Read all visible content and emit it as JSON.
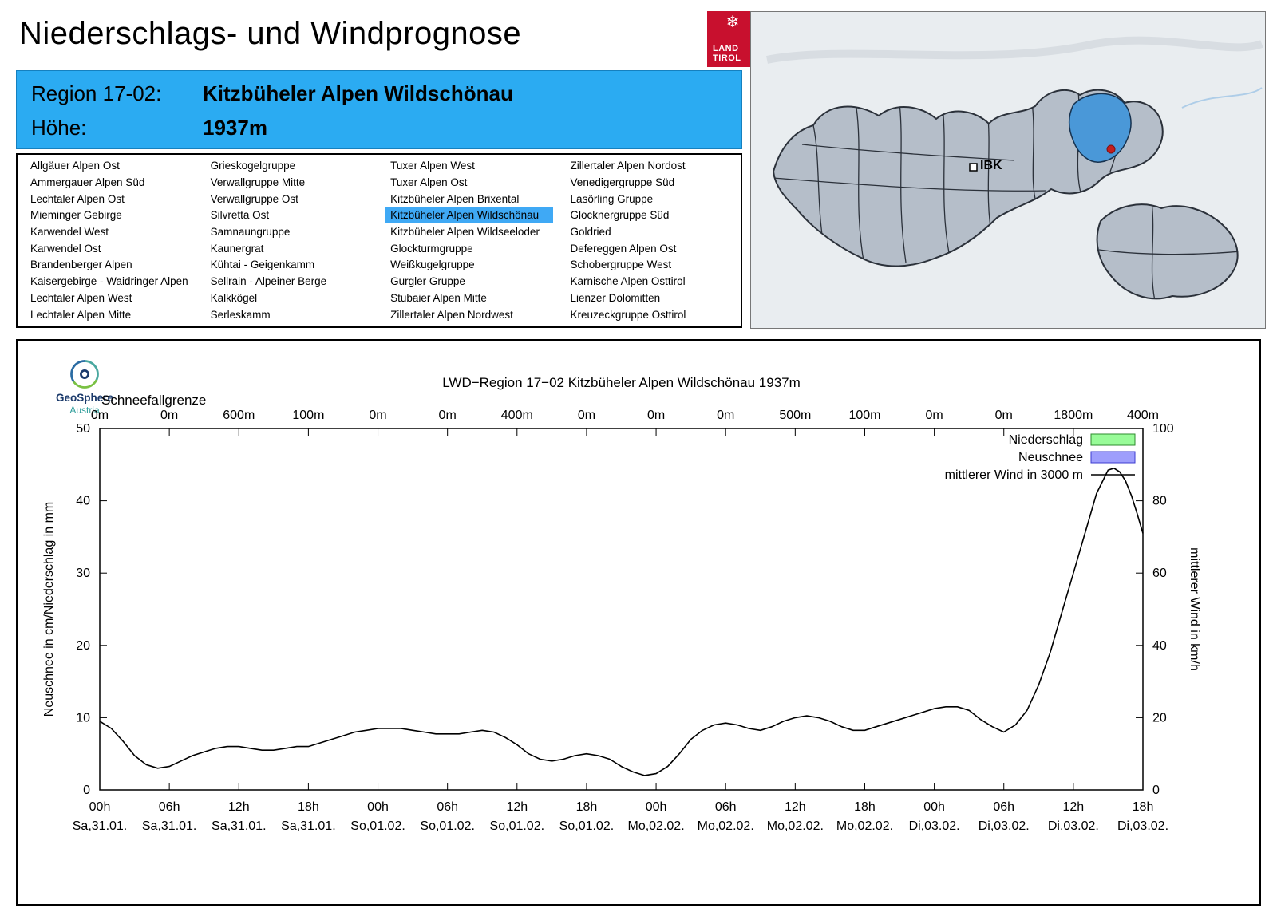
{
  "page": {
    "title": "Niederschlags- und Windprognose"
  },
  "logo": {
    "line1": "LAND",
    "line2": "TIROL",
    "name": "Land Tirol"
  },
  "geosphere": {
    "name": "GeoSphere",
    "country": "Austria"
  },
  "map": {
    "ibk_label": "IBK"
  },
  "region_info": {
    "region_label": "Region 17-02:",
    "region_value": "Kitzbüheler Alpen Wildschönau",
    "hoehe_label": "Höhe:",
    "hoehe_value": "1937m"
  },
  "region_list": {
    "selected": "Kitzbüheler Alpen Wildschönau",
    "columns": [
      [
        "Allgäuer Alpen Ost",
        "Ammergauer Alpen Süd",
        "Lechtaler Alpen Ost",
        "Mieminger Gebirge",
        "Karwendel West",
        "Karwendel Ost",
        "Brandenberger Alpen",
        "Kaisergebirge - Waidringer Alpen",
        "Lechtaler Alpen West",
        "Lechtaler Alpen Mitte"
      ],
      [
        "Grieskogelgruppe",
        "Verwallgruppe Mitte",
        "Verwallgruppe Ost",
        "Silvretta Ost",
        "Samnaungruppe",
        "Kaunergrat",
        "Kühtai - Geigenkamm",
        "Sellrain - Alpeiner Berge",
        "Kalkkögel",
        "Serleskamm"
      ],
      [
        "Tuxer Alpen West",
        "Tuxer Alpen Ost",
        "Kitzbüheler Alpen Brixental",
        "Kitzbüheler Alpen Wildschönau",
        "Kitzbüheler Alpen Wildseeloder",
        "Glockturmgruppe",
        "Weißkugelgruppe",
        "Gurgler Gruppe",
        "Stubaier Alpen Mitte",
        "Zillertaler Alpen Nordwest"
      ],
      [
        "Zillertaler Alpen Nordost",
        "Venedigergruppe Süd",
        "Lasörling Gruppe",
        "Glocknergruppe Süd",
        "Goldried",
        "Defereggen Alpen Ost",
        "Schobergruppe West",
        "Karnische Alpen Osttirol",
        "Lienzer Dolomitten",
        "Kreuzeckgruppe Osttirol"
      ]
    ]
  },
  "chart_data": {
    "type": "line",
    "title": "LWD−Region 17−02 Kitzbüheler Alpen Wildschönau 1937m",
    "snowline_label": "Schneefallgrenze",
    "snowline_values": [
      "0m",
      "0m",
      "600m",
      "100m",
      "0m",
      "0m",
      "400m",
      "0m",
      "0m",
      "0m",
      "500m",
      "100m",
      "0m",
      "0m",
      "1800m",
      "400m"
    ],
    "x_ticks_hours": [
      "00h",
      "06h",
      "12h",
      "18h",
      "00h",
      "06h",
      "12h",
      "18h",
      "00h",
      "06h",
      "12h",
      "18h",
      "00h",
      "06h",
      "12h",
      "18h"
    ],
    "x_ticks_dates": [
      "Sa,31.01.",
      "Sa,31.01.",
      "Sa,31.01.",
      "Sa,31.01.",
      "So,01.02.",
      "So,01.02.",
      "So,01.02.",
      "So,01.02.",
      "Mo,02.02.",
      "Mo,02.02.",
      "Mo,02.02.",
      "Mo,02.02.",
      "Di,03.02.",
      "Di,03.02.",
      "Di,03.02.",
      "Di,03.02."
    ],
    "x_range_hours": [
      0,
      90
    ],
    "ylabel_left": "Neuschnee in cm/Niederschlag in mm",
    "ylabel_right": "mittlerer Wind in km/h",
    "ylim_left": [
      0,
      50
    ],
    "ylim_right": [
      0,
      100
    ],
    "y_ticks_left": [
      0,
      10,
      20,
      30,
      40,
      50
    ],
    "y_ticks_right": [
      0,
      20,
      40,
      60,
      80,
      100
    ],
    "grid": false,
    "legend_position": "top-right-inside",
    "legend": [
      {
        "label": "Niederschlag",
        "type": "box",
        "fill": "#98fb98",
        "stroke": "#2e8b2e"
      },
      {
        "label": "Neuschnee",
        "type": "box",
        "fill": "#9e9efc",
        "stroke": "#3c3cd0"
      },
      {
        "label": "mittlerer Wind in 3000 m",
        "type": "line",
        "stroke": "#000000"
      }
    ],
    "series": [
      {
        "name": "mittlerer Wind in 3000 m",
        "axis": "right",
        "unit": "km/h",
        "points": [
          [
            0,
            19
          ],
          [
            1,
            17
          ],
          [
            2,
            13.5
          ],
          [
            3,
            9.5
          ],
          [
            4,
            7
          ],
          [
            5,
            6
          ],
          [
            6,
            6.5
          ],
          [
            7,
            8
          ],
          [
            8,
            9.5
          ],
          [
            9,
            10.5
          ],
          [
            10,
            11.5
          ],
          [
            11,
            12
          ],
          [
            12,
            12
          ],
          [
            13,
            11.5
          ],
          [
            14,
            11
          ],
          [
            15,
            11
          ],
          [
            16,
            11.5
          ],
          [
            17,
            12
          ],
          [
            18,
            12
          ],
          [
            19,
            13
          ],
          [
            20,
            14
          ],
          [
            21,
            15
          ],
          [
            22,
            16
          ],
          [
            23,
            16.5
          ],
          [
            24,
            17
          ],
          [
            25,
            17
          ],
          [
            26,
            17
          ],
          [
            27,
            16.5
          ],
          [
            28,
            16
          ],
          [
            29,
            15.5
          ],
          [
            30,
            15.5
          ],
          [
            31,
            15.5
          ],
          [
            32,
            16
          ],
          [
            33,
            16.5
          ],
          [
            34,
            16
          ],
          [
            35,
            14.5
          ],
          [
            36,
            12.5
          ],
          [
            37,
            10
          ],
          [
            38,
            8.5
          ],
          [
            39,
            8
          ],
          [
            40,
            8.5
          ],
          [
            41,
            9.5
          ],
          [
            42,
            10
          ],
          [
            43,
            9.5
          ],
          [
            44,
            8.5
          ],
          [
            45,
            6.5
          ],
          [
            46,
            5
          ],
          [
            47,
            4
          ],
          [
            48,
            4.5
          ],
          [
            49,
            6.5
          ],
          [
            50,
            10
          ],
          [
            51,
            14
          ],
          [
            52,
            16.5
          ],
          [
            53,
            18
          ],
          [
            54,
            18.5
          ],
          [
            55,
            18
          ],
          [
            56,
            17
          ],
          [
            57,
            16.5
          ],
          [
            58,
            17.5
          ],
          [
            59,
            19
          ],
          [
            60,
            20
          ],
          [
            61,
            20.5
          ],
          [
            62,
            20
          ],
          [
            63,
            19
          ],
          [
            64,
            17.5
          ],
          [
            65,
            16.5
          ],
          [
            66,
            16.5
          ],
          [
            67,
            17.5
          ],
          [
            68,
            18.5
          ],
          [
            69,
            19.5
          ],
          [
            70,
            20.5
          ],
          [
            71,
            21.5
          ],
          [
            72,
            22.5
          ],
          [
            73,
            23
          ],
          [
            74,
            23
          ],
          [
            75,
            22
          ],
          [
            76,
            19.5
          ],
          [
            77,
            17.5
          ],
          [
            78,
            16
          ],
          [
            79,
            18
          ],
          [
            80,
            22
          ],
          [
            81,
            29
          ],
          [
            82,
            38
          ],
          [
            83,
            49
          ],
          [
            84,
            60
          ],
          [
            85,
            71
          ],
          [
            86,
            82
          ],
          [
            87,
            88.5
          ],
          [
            87.5,
            89
          ],
          [
            88,
            88
          ],
          [
            88.5,
            85.5
          ],
          [
            89,
            81.5
          ],
          [
            89.5,
            76.5
          ],
          [
            90,
            71
          ]
        ]
      },
      {
        "name": "Niederschlag",
        "axis": "left",
        "unit": "mm",
        "points": []
      },
      {
        "name": "Neuschnee",
        "axis": "left",
        "unit": "cm",
        "points": []
      }
    ]
  }
}
